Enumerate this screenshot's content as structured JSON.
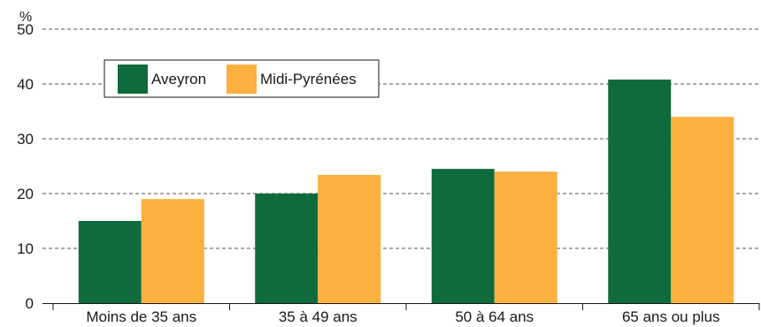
{
  "chart_data": {
    "type": "bar",
    "title": "",
    "xlabel": "",
    "ylabel": "%",
    "ylim": [
      0,
      50
    ],
    "yticks": [
      0,
      10,
      20,
      30,
      40,
      50
    ],
    "grid": true,
    "legend_position": "top-left",
    "categories": [
      "Moins de 35 ans",
      "35 à 49 ans",
      "50 à 64 ans",
      "65 ans ou plus"
    ],
    "series": [
      {
        "name": "Aveyron",
        "color": "#0f6b3c",
        "values": [
          15.0,
          20.0,
          24.5,
          40.8
        ]
      },
      {
        "name": "Midi-Pyrénées",
        "color": "#fbb040",
        "values": [
          19.0,
          23.4,
          24.0,
          34.0
        ]
      }
    ]
  }
}
